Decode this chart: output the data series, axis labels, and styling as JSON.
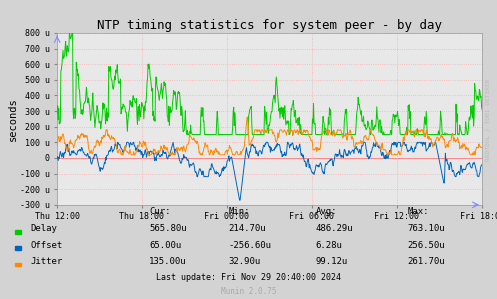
{
  "title": "NTP timing statistics for system peer - by day",
  "ylabel": "seconds",
  "background_color": "#d3d3d3",
  "plot_bg_color": "#e8e8e8",
  "series": {
    "Delay": {
      "color": "#00cc00"
    },
    "Offset": {
      "color": "#0066bb"
    },
    "Jitter": {
      "color": "#ff8800"
    }
  },
  "ylim": [
    -300,
    800
  ],
  "yticks": [
    -300,
    -200,
    -100,
    0,
    100,
    200,
    300,
    400,
    500,
    600,
    700,
    800
  ],
  "ytick_labels": [
    "-300 u",
    "-200 u",
    "-100 u",
    "0",
    "100 u",
    "200 u",
    "300 u",
    "400 u",
    "500 u",
    "600 u",
    "700 u",
    "800 u"
  ],
  "xtick_labels": [
    "Thu 12:00",
    "Thu 18:00",
    "Fri 00:00",
    "Fri 06:00",
    "Fri 12:00",
    "Fri 18:00"
  ],
  "legend_entries": [
    {
      "label": "Delay",
      "color": "#00cc00"
    },
    {
      "label": "Offset",
      "color": "#0066bb"
    },
    {
      "label": "Jitter",
      "color": "#ff8800"
    }
  ],
  "stats_headers": [
    "Cur:",
    "Min:",
    "Avg:",
    "Max:"
  ],
  "stats_rows": [
    {
      "name": "Delay",
      "values": [
        "565.80u",
        "214.70u",
        "486.29u",
        "763.10u"
      ]
    },
    {
      "name": "Offset",
      "values": [
        "65.00u",
        "-256.60u",
        "6.28u",
        "256.50u"
      ]
    },
    {
      "name": "Jitter",
      "values": [
        "135.00u",
        "32.90u",
        "99.12u",
        "261.70u"
      ]
    }
  ],
  "last_update": "Last update: Fri Nov 29 20:40:00 2024",
  "munin_version": "Munin 2.0.75",
  "watermark": "RRDTOOL / TOBI OETIKER"
}
